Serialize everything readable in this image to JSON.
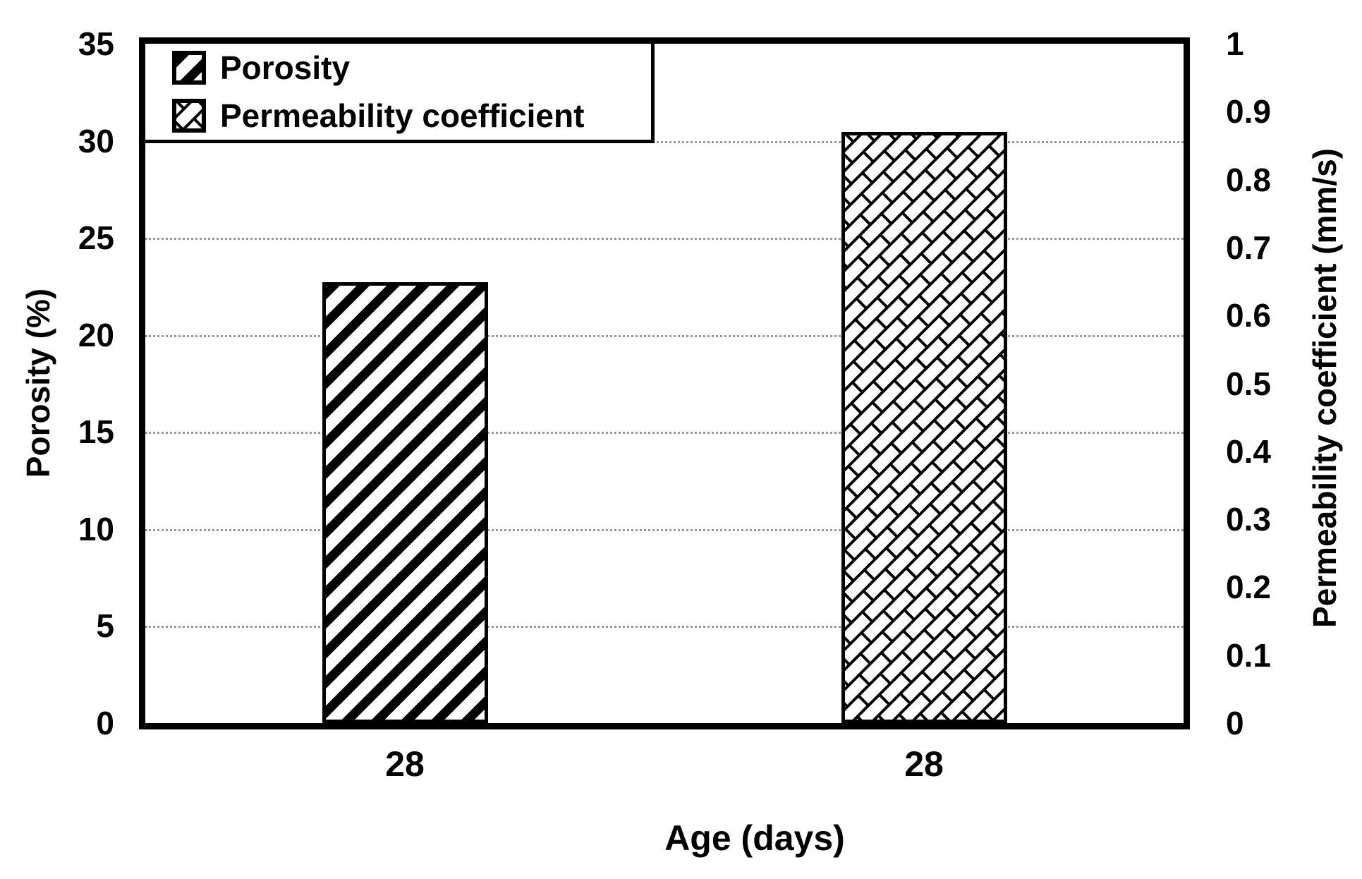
{
  "chart_data": {
    "type": "bar",
    "title": "",
    "x_axis": {
      "label": "Age (days)",
      "categories": [
        "28",
        "28"
      ]
    },
    "left_axis": {
      "label": "Porosity (%)",
      "min": 0,
      "max": 35,
      "ticks": [
        "0",
        "5",
        "10",
        "15",
        "20",
        "25",
        "30",
        "35"
      ]
    },
    "right_axis": {
      "label": "Permeability coefficient (mm/s)",
      "min": 0,
      "max": 1,
      "ticks": [
        "0",
        "0.1",
        "0.2",
        "0.3",
        "0.4",
        "0.5",
        "0.6",
        "0.7",
        "0.8",
        "0.9",
        "1"
      ]
    },
    "series": [
      {
        "name": "Porosity",
        "axis": "left",
        "category_index": 0,
        "value": 22.7,
        "pattern": "diagonal-stripe"
      },
      {
        "name": "Permeability coefficient",
        "axis": "right",
        "category_index": 1,
        "value": 0.87,
        "pattern": "diagonal-brick"
      }
    ],
    "legend": {
      "position": "top-left",
      "entries": [
        "Porosity",
        "Permeability coefficient"
      ]
    },
    "grid": {
      "horizontal": true,
      "style": "dotted",
      "left_axis_step": 5
    },
    "colors": {
      "ink": "#000000",
      "background": "#ffffff",
      "gridline": "#999999"
    }
  }
}
